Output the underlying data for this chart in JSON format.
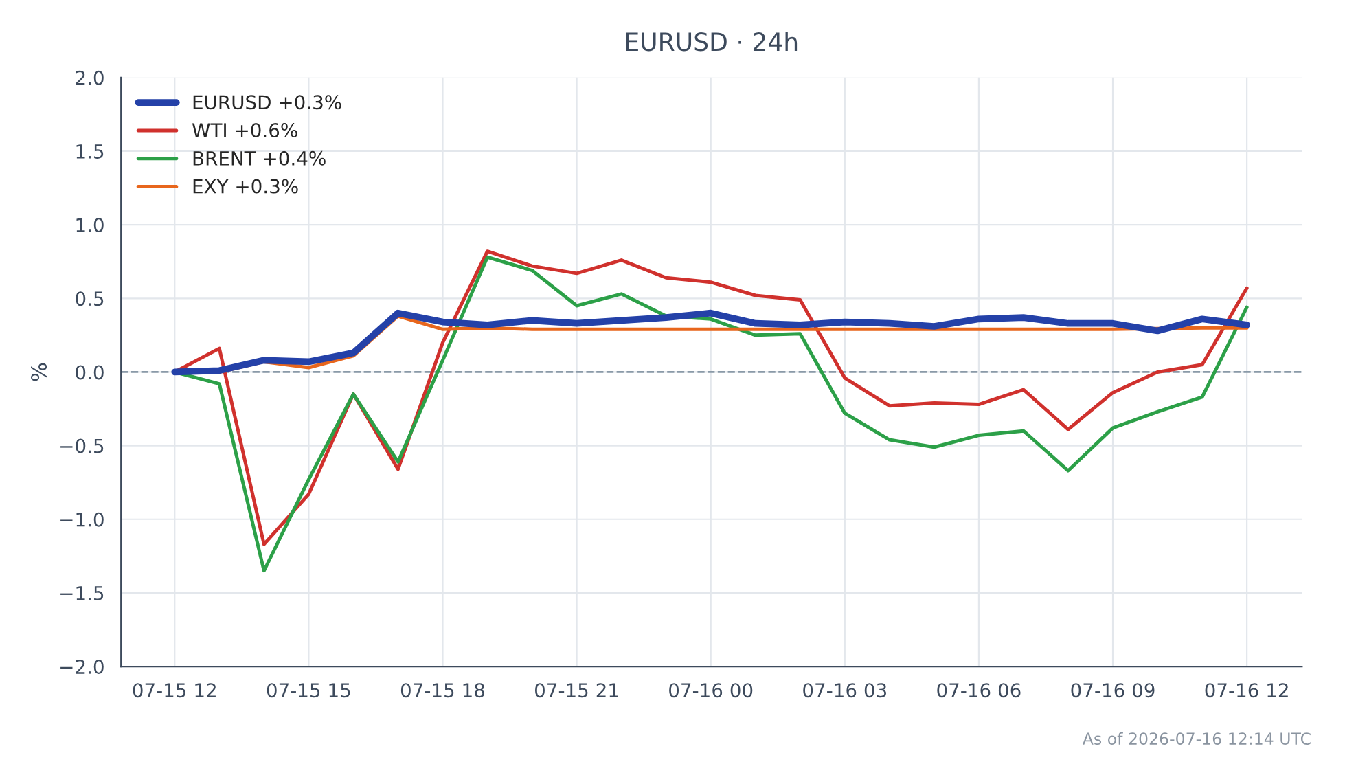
{
  "chart_data": {
    "type": "line",
    "title": "EURUSD · 24h",
    "ylabel": "%",
    "x": [
      "2026-07-15T12:00",
      "2026-07-15T13:00",
      "2026-07-15T14:00",
      "2026-07-15T15:00",
      "2026-07-15T16:00",
      "2026-07-15T17:00",
      "2026-07-15T18:00",
      "2026-07-15T19:00",
      "2026-07-15T20:00",
      "2026-07-15T21:00",
      "2026-07-15T22:00",
      "2026-07-15T23:00",
      "2026-07-16T00:00",
      "2026-07-16T01:00",
      "2026-07-16T02:00",
      "2026-07-16T03:00",
      "2026-07-16T04:00",
      "2026-07-16T05:00",
      "2026-07-16T06:00",
      "2026-07-16T07:00",
      "2026-07-16T08:00",
      "2026-07-16T09:00",
      "2026-07-16T10:00",
      "2026-07-16T11:00",
      "2026-07-16T12:00"
    ],
    "series": [
      {
        "name": "EURUSD +0.3%",
        "color": "#2441a8",
        "values": [
          0,
          0.01,
          0.08,
          0.07,
          0.13,
          0.4,
          0.34,
          0.32,
          0.35,
          0.33,
          0.35,
          0.37,
          0.4,
          0.33,
          0.32,
          0.34,
          0.33,
          0.31,
          0.36,
          0.37,
          0.33,
          0.33,
          0.28,
          0.36,
          0.32
        ]
      },
      {
        "name": "WTI +0.6%",
        "color": "#d0312d",
        "values": [
          0,
          0.16,
          -1.17,
          -0.83,
          -0.15,
          -0.66,
          0.2,
          0.82,
          0.72,
          0.67,
          0.76,
          0.64,
          0.61,
          0.52,
          0.49,
          -0.04,
          -0.23,
          -0.21,
          -0.22,
          -0.12,
          -0.39,
          -0.14,
          0.0,
          0.05,
          0.57
        ]
      },
      {
        "name": "BRENT +0.4%",
        "color": "#2ca048",
        "values": [
          0,
          -0.08,
          -1.35,
          -0.73,
          -0.15,
          -0.61,
          0.08,
          0.78,
          0.69,
          0.45,
          0.53,
          0.38,
          0.36,
          0.25,
          0.26,
          -0.28,
          -0.46,
          -0.51,
          -0.43,
          -0.4,
          -0.67,
          -0.38,
          -0.27,
          -0.17,
          0.44
        ]
      },
      {
        "name": "EXY +0.3%",
        "color": "#e8661c",
        "values": [
          0,
          0.0,
          0.07,
          0.03,
          0.11,
          0.38,
          0.29,
          0.3,
          0.29,
          0.29,
          0.29,
          0.29,
          0.29,
          0.29,
          0.29,
          0.29,
          0.29,
          0.29,
          0.29,
          0.29,
          0.29,
          0.29,
          null,
          0.3,
          0.3
        ]
      }
    ],
    "xlim": [
      "2026-07-15T10:48",
      "2026-07-16T13:14"
    ],
    "xticks": [
      {
        "value": "2026-07-15T12:00",
        "label": "07-15 12"
      },
      {
        "value": "2026-07-15T15:00",
        "label": "07-15 15"
      },
      {
        "value": "2026-07-15T18:00",
        "label": "07-15 18"
      },
      {
        "value": "2026-07-15T21:00",
        "label": "07-15 21"
      },
      {
        "value": "2026-07-16T00:00",
        "label": "07-16 00"
      },
      {
        "value": "2026-07-16T03:00",
        "label": "07-16 03"
      },
      {
        "value": "2026-07-16T06:00",
        "label": "07-16 06"
      },
      {
        "value": "2026-07-16T09:00",
        "label": "07-16 09"
      },
      {
        "value": "2026-07-16T12:00",
        "label": "07-16 12"
      }
    ],
    "ylim": [
      -2.0,
      2.0
    ],
    "yticks": [
      {
        "value": -2.0,
        "label": "−2.0"
      },
      {
        "value": -1.5,
        "label": "−1.5"
      },
      {
        "value": -1.0,
        "label": "−1.0"
      },
      {
        "value": -0.5,
        "label": "−0.5"
      },
      {
        "value": 0.0,
        "label": "0.0"
      },
      {
        "value": 0.5,
        "label": "0.5"
      },
      {
        "value": 1.0,
        "label": "1.0"
      },
      {
        "value": 1.5,
        "label": "1.5"
      },
      {
        "value": 2.0,
        "label": "2.0"
      }
    ],
    "ref_lines": [
      {
        "axis": "y",
        "value": 0,
        "label": null,
        "color": "#8a9aa8",
        "line_style": "dashed"
      }
    ],
    "grid": true,
    "legend": "top left",
    "line_style": "solid",
    "marker": "none",
    "annotations": [
      "As of 2026-07-16 12:14 UTC"
    ]
  }
}
